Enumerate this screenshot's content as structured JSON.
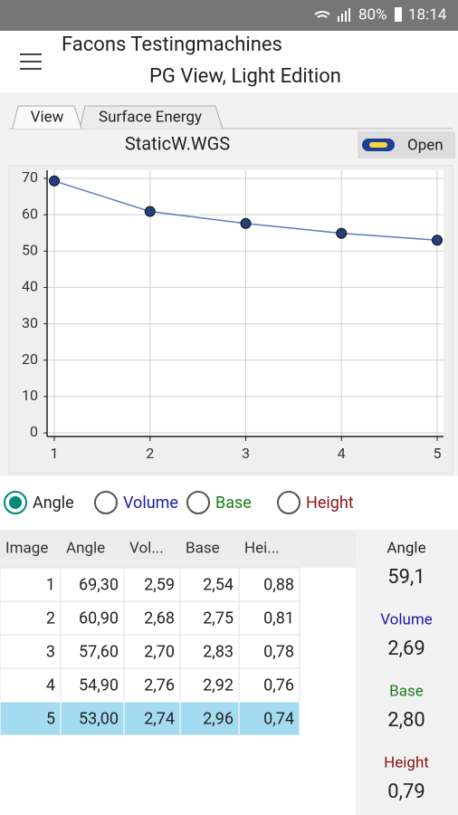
{
  "status_bar": {
    "battery": "80%",
    "time": "18:14"
  },
  "header": {
    "title": "Facons Testingmachines",
    "subtitle": "PG View, Light Edition"
  },
  "tabs": [
    "View",
    "Surface Energy"
  ],
  "file": {
    "name": "StaticW.WGS",
    "button": "Open"
  },
  "chart_data": {
    "type": "line",
    "x": [
      1,
      2,
      3,
      4,
      5
    ],
    "values": [
      69.3,
      60.9,
      57.6,
      54.9,
      53.0
    ],
    "color": "#5b7db5",
    "marker_color": "#24407a",
    "xlim": [
      1,
      5
    ],
    "ylim": [
      0,
      70
    ],
    "xticks": [
      1,
      2,
      3,
      4,
      5
    ],
    "yticks": [
      0,
      10,
      20,
      30,
      40,
      50,
      60,
      70
    ],
    "grid": true
  },
  "radios": [
    "Angle",
    "Volume",
    "Base",
    "Height"
  ],
  "table": {
    "headers": [
      "Image",
      "Angle",
      "Vol...",
      "Base",
      "Hei..."
    ],
    "rows": [
      [
        "1",
        "69,30",
        "2,59",
        "2,54",
        "0,88"
      ],
      [
        "2",
        "60,90",
        "2,68",
        "2,75",
        "0,81"
      ],
      [
        "3",
        "57,60",
        "2,70",
        "2,83",
        "0,78"
      ],
      [
        "4",
        "54,90",
        "2,76",
        "2,92",
        "0,76"
      ],
      [
        "5",
        "53,00",
        "2,74",
        "2,96",
        "0,74"
      ]
    ]
  },
  "summary": [
    {
      "label": "Angle",
      "value": "59,1"
    },
    {
      "label": "Volume",
      "value": "2,69"
    },
    {
      "label": "Base",
      "value": "2,80"
    },
    {
      "label": "Height",
      "value": "0,79"
    }
  ]
}
